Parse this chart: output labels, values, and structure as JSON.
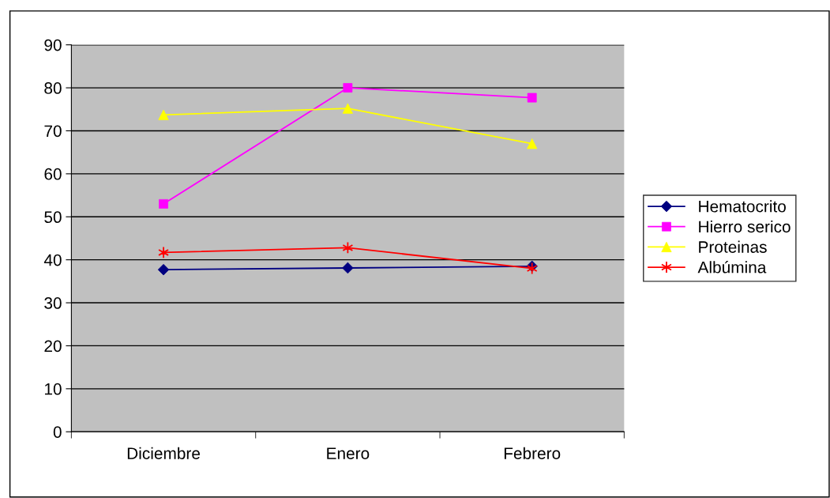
{
  "chart_data": {
    "type": "line",
    "categories": [
      "Diciembre",
      "Enero",
      "Febrero"
    ],
    "series": [
      {
        "name": "Hematocrito",
        "color": "#000080",
        "marker": "diamond",
        "values": [
          37.7,
          38.1,
          38.5
        ]
      },
      {
        "name": "Hierro serico",
        "color": "#ff00ff",
        "marker": "square",
        "values": [
          53,
          80,
          77.7
        ]
      },
      {
        "name": "Proteinas",
        "color": "#ffff00",
        "marker": "triangle",
        "values": [
          73.7,
          75.2,
          67
        ]
      },
      {
        "name": "Albúmina",
        "color": "#ff0000",
        "marker": "cross",
        "values": [
          41.7,
          42.8,
          38
        ]
      }
    ],
    "ylim": [
      0,
      90
    ],
    "yticks": [
      0,
      10,
      20,
      30,
      40,
      50,
      60,
      70,
      80,
      90
    ],
    "grid": "y",
    "legend": "right"
  }
}
